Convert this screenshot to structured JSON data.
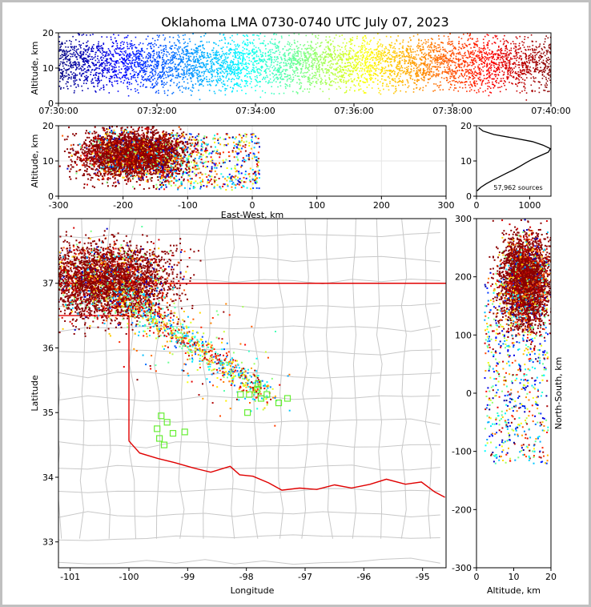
{
  "title": "Oklahoma LMA 0730-0740 UTC July 07, 2023",
  "chart_data": [
    {
      "type": "scatter",
      "panel": "altitude-vs-time",
      "xlabel": "",
      "ylabel": "Altitude, km",
      "x_ticks": [
        "07:30:00",
        "07:32:00",
        "07:34:00",
        "07:36:00",
        "07:38:00",
        "07:40:00"
      ],
      "x_range_min": [
        0,
        10
      ],
      "ylim": [
        0,
        20
      ],
      "y_ticks": [
        0,
        10,
        20
      ],
      "color_encoding": "time (jet colormap, blue early to dark red late)",
      "note": "dense band of sources spanning 5-20 km across the whole period"
    },
    {
      "type": "scatter",
      "panel": "altitude-vs-east-west",
      "xlabel": "East-West, km",
      "ylabel": "Altitude, km",
      "xlim": [
        -300,
        300
      ],
      "x_ticks": [
        -300,
        -200,
        -100,
        0,
        100,
        200,
        300
      ],
      "ylim": [
        0,
        20
      ],
      "y_ticks": [
        0,
        10,
        20
      ],
      "grid": true
    },
    {
      "type": "line",
      "panel": "altitude-histogram",
      "xlabel": "",
      "ylabel": "",
      "xlim": [
        0,
        1400
      ],
      "x_ticks": [
        0,
        1000
      ],
      "ylim": [
        0,
        20
      ],
      "y_ticks": [
        0,
        10,
        20
      ],
      "annotation": "57,962 sources",
      "series": [
        {
          "altitude_km": [
            1.5,
            2.5,
            3.5,
            4.5,
            5.5,
            6.5,
            7.5,
            8.5,
            9.5,
            10.5,
            11.5,
            12.5,
            13.5,
            14.5,
            15.5,
            16.5,
            17.5,
            18.5,
            19.5
          ],
          "count": [
            10,
            80,
            180,
            300,
            430,
            560,
            700,
            820,
            930,
            1050,
            1200,
            1350,
            1390,
            1250,
            1050,
            700,
            330,
            120,
            40
          ]
        }
      ]
    },
    {
      "type": "scatter",
      "panel": "plan-view-map",
      "xlabel": "Longitude",
      "ylabel": "Latitude",
      "xlim": [
        -101.2,
        -94.6
      ],
      "x_ticks": [
        -101,
        -100,
        -99,
        -98,
        -97,
        -96,
        -95
      ],
      "ylim": [
        32.6,
        38.0
      ],
      "y_ticks": [
        33,
        34,
        35,
        36,
        37
      ],
      "stations": [
        [
          -99.45,
          34.95
        ],
        [
          -99.35,
          34.85
        ],
        [
          -99.52,
          34.75
        ],
        [
          -99.48,
          34.6
        ],
        [
          -99.4,
          34.5
        ],
        [
          -99.25,
          34.68
        ],
        [
          -99.05,
          34.7
        ],
        [
          -98.1,
          35.28
        ],
        [
          -97.95,
          35.28
        ],
        [
          -97.82,
          35.35
        ],
        [
          -97.75,
          35.22
        ],
        [
          -97.98,
          35.0
        ],
        [
          -97.65,
          35.28
        ],
        [
          -97.45,
          35.15
        ],
        [
          -97.3,
          35.22
        ],
        [
          -97.8,
          35.45
        ]
      ]
    },
    {
      "type": "scatter",
      "panel": "north-south-vs-altitude",
      "xlabel": "Altitude, km",
      "ylabel": "North-South, km",
      "xlim": [
        0,
        20
      ],
      "x_ticks": [
        0,
        10,
        20
      ],
      "ylim": [
        -300,
        300
      ],
      "y_ticks": [
        -300,
        -200,
        -100,
        0,
        100,
        200,
        300
      ]
    }
  ]
}
